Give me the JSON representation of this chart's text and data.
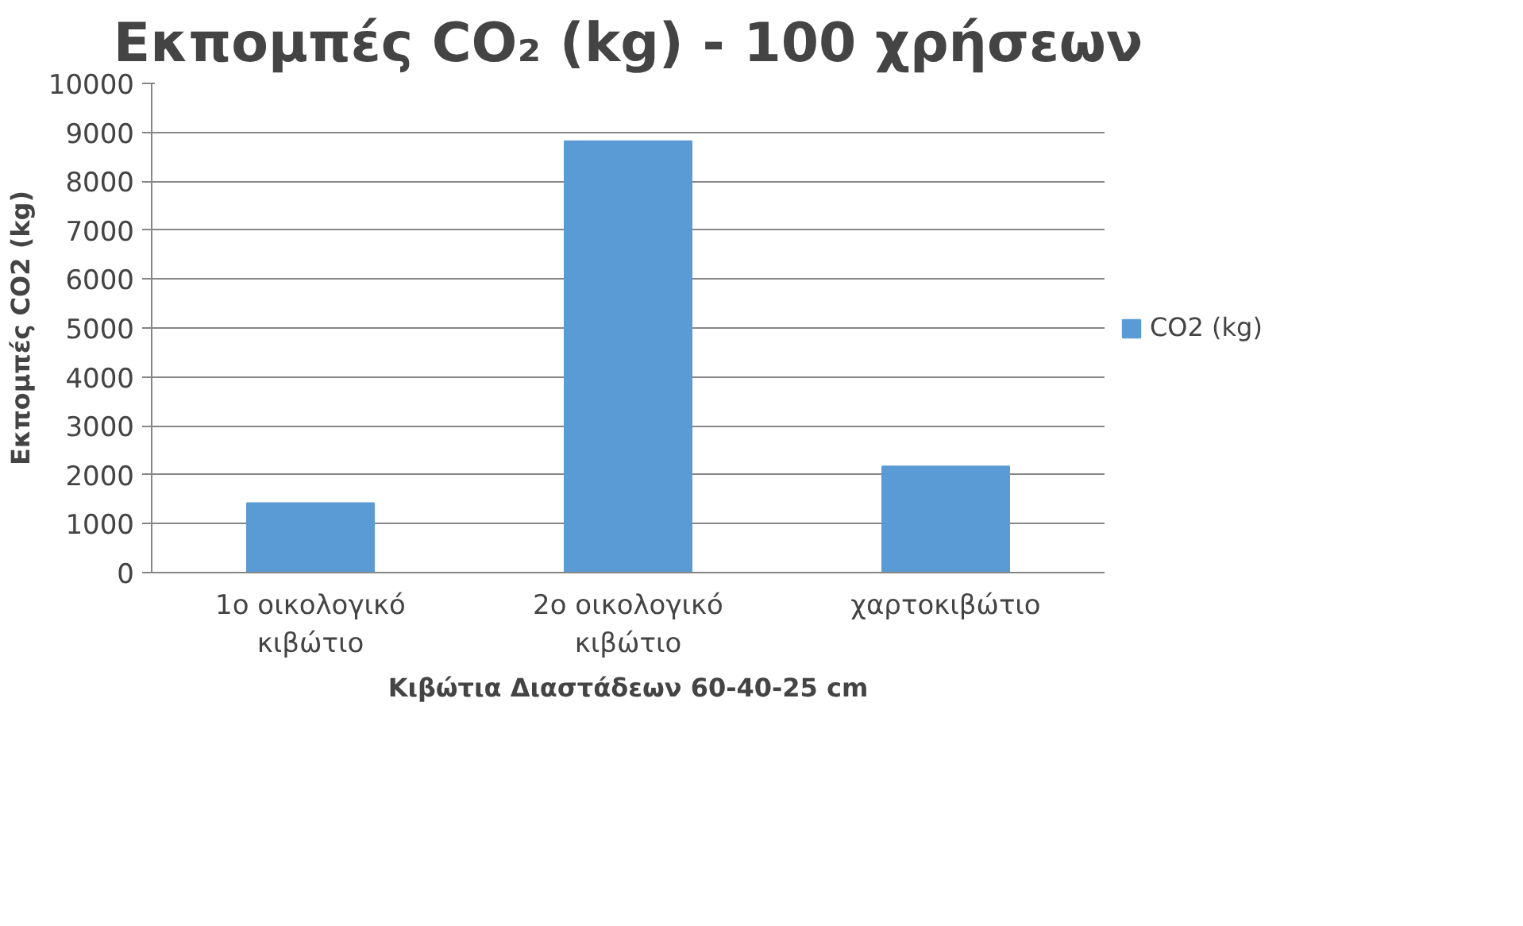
{
  "chart_data": {
    "type": "bar",
    "title": "Εκπομπές CO₂ (kg) - 100 χρήσεων",
    "xlabel": "Κιβώτια Διαστάδεων 60-40-25 cm",
    "ylabel": "Εκπομπές CO2 (kg)",
    "categories": [
      "1ο οικολογικό\nκιβώτιο",
      "2ο οικολογικό\nκιβώτιο",
      "χαρτοκιβώτιο"
    ],
    "series": [
      {
        "name": "CO2 (kg)",
        "color": "#5b9bd5",
        "values": [
          1420,
          8820,
          2170
        ]
      }
    ],
    "ylim": [
      0,
      10000
    ],
    "yticks": [
      0,
      1000,
      2000,
      3000,
      4000,
      5000,
      6000,
      7000,
      8000,
      9000,
      10000
    ],
    "grid": "y",
    "legend": "right"
  }
}
